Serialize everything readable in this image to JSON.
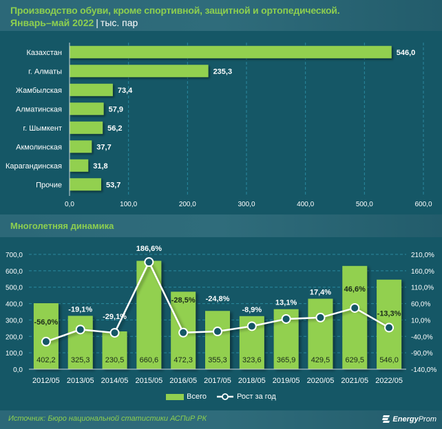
{
  "header": {
    "title": "Производство обуви, кроме спортивной, защитной и ортопедической.",
    "period": "Январь–май 2022",
    "separator": "|",
    "unit": "тыс. пар"
  },
  "section2": {
    "title": "Многолетняя динамика"
  },
  "footer": {
    "source": "Источник: Бюро национальной статистики АСПиР РК",
    "logo_bold": "Energy",
    "logo_light": "Prom"
  },
  "colors": {
    "bar": "#92d050",
    "background": "#155766",
    "accent_text": "#8dcf4f",
    "line": "#ffffff"
  },
  "chart_data": [
    {
      "type": "bar",
      "orientation": "horizontal",
      "title": "Производство обуви, кроме спортивной, защитной и ортопедической. Январь–май 2022",
      "unit": "тыс. пар",
      "categories": [
        "Казахстан",
        "г. Алматы",
        "Жамбылская",
        "Алматинская",
        "г. Шымкент",
        "Акмолинская",
        "Карагандинская",
        "Прочие"
      ],
      "values": [
        546.0,
        235.3,
        73.4,
        57.9,
        56.2,
        37.7,
        31.8,
        53.7
      ],
      "value_labels": [
        "546,0",
        "235,3",
        "73,4",
        "57,9",
        "56,2",
        "37,7",
        "31,8",
        "53,7"
      ],
      "xlim": [
        0,
        600
      ],
      "xticks": [
        0,
        100,
        200,
        300,
        400,
        500,
        600
      ],
      "xtick_labels": [
        "0,0",
        "100,0",
        "200,0",
        "300,0",
        "400,0",
        "500,0",
        "600,0"
      ],
      "grid": "vertical dashed"
    },
    {
      "type": "bar+line",
      "title": "Многолетняя динамика",
      "categories": [
        "2012/05",
        "2013/05",
        "2014/05",
        "2015/05",
        "2016/05",
        "2017/05",
        "2018/05",
        "2019/05",
        "2020/05",
        "2021/05",
        "2022/05"
      ],
      "series": [
        {
          "name": "Всего",
          "type": "bar",
          "axis": "left",
          "values": [
            402.2,
            325.3,
            230.5,
            660.6,
            472.3,
            355.3,
            323.6,
            365.9,
            429.5,
            629.5,
            546.0
          ],
          "labels": [
            "402,2",
            "325,3",
            "230,5",
            "660,6",
            "472,3",
            "355,3",
            "323,6",
            "365,9",
            "429,5",
            "629,5",
            "546,0"
          ]
        },
        {
          "name": "Рост за год",
          "type": "line",
          "axis": "right",
          "values": [
            -56.0,
            -19.1,
            -29.1,
            186.6,
            -28.5,
            -24.8,
            -8.9,
            13.1,
            17.4,
            46.6,
            -13.3
          ],
          "labels": [
            "-56,0%",
            "-19,1%",
            "-29,1%",
            "186,6%",
            "-28,5%",
            "-24,8%",
            "-8,9%",
            "13,1%",
            "17,4%",
            "46,6%",
            "-13,3%"
          ]
        }
      ],
      "ylim_left": [
        0,
        700
      ],
      "yticks_left": [
        "0,0",
        "100,0",
        "200,0",
        "300,0",
        "400,0",
        "500,0",
        "600,0",
        "700,0"
      ],
      "ylim_right": [
        -140,
        210
      ],
      "yticks_right": [
        "-140,0%",
        "-90,0%",
        "-40,0%",
        "10,0%",
        "60,0%",
        "110,0%",
        "160,0%",
        "210,0%"
      ],
      "legend": [
        "Всего",
        "Рост за год"
      ],
      "legend_position": "bottom",
      "grid": "horizontal dashed"
    }
  ]
}
